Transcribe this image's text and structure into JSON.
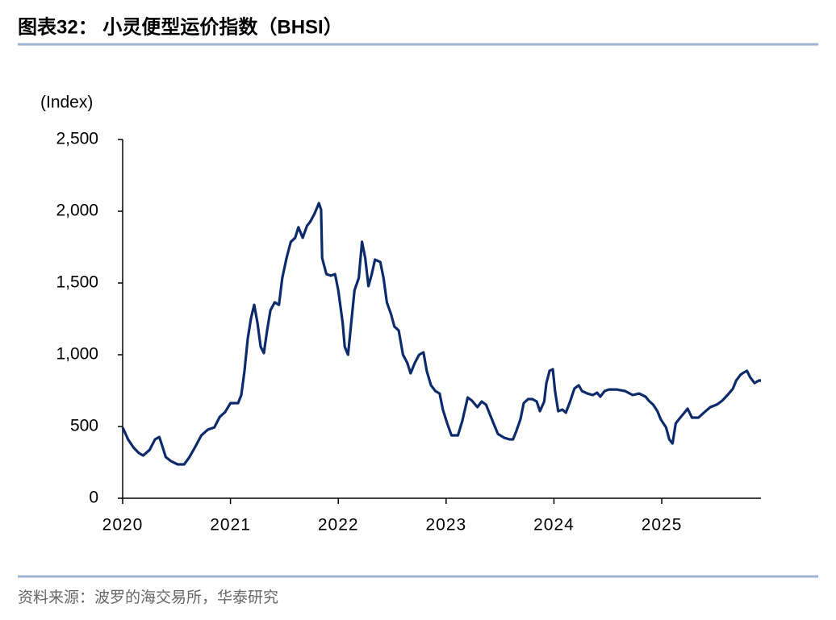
{
  "chart_data": {
    "type": "line",
    "title": "图表32：  小灵便型运价指数（BHSI）",
    "y_label": "(Index)",
    "source": "资料来源：波罗的海交易所，华泰研究",
    "xlim": [
      2020,
      2025.92
    ],
    "xticks": [
      2020,
      2021,
      2022,
      2023,
      2024,
      2025
    ],
    "ylim": [
      0,
      2500
    ],
    "yticks": [
      0,
      500,
      {
        "value": 1000,
        "label": "1,000"
      },
      {
        "value": 1500,
        "label": "1,500"
      },
      {
        "value": 2000,
        "label": "2,000"
      },
      {
        "value": 2500,
        "label": "2,500"
      }
    ],
    "grid": false,
    "x": [
      2020.0,
      2020.05,
      2020.1,
      2020.15,
      2020.19,
      2020.25,
      2020.3,
      2020.34,
      2020.36,
      2020.4,
      2020.45,
      2020.51,
      2020.57,
      2020.62,
      2020.67,
      2020.73,
      2020.79,
      2020.85,
      2020.9,
      2020.95,
      2021.0,
      2021.07,
      2021.1,
      2021.13,
      2021.16,
      2021.19,
      2021.22,
      2021.25,
      2021.28,
      2021.31,
      2021.34,
      2021.37,
      2021.41,
      2021.45,
      2021.48,
      2021.52,
      2021.56,
      2021.6,
      2021.63,
      2021.67,
      2021.71,
      2021.74,
      2021.78,
      2021.82,
      2021.84,
      2021.85,
      2021.89,
      2021.93,
      2021.97,
      2022.0,
      2022.04,
      2022.06,
      2022.09,
      2022.12,
      2022.15,
      2022.19,
      2022.22,
      2022.25,
      2022.28,
      2022.31,
      2022.34,
      2022.39,
      2022.42,
      2022.45,
      2022.49,
      2022.52,
      2022.56,
      2022.6,
      2022.64,
      2022.67,
      2022.71,
      2022.75,
      2022.79,
      2022.82,
      2022.86,
      2022.9,
      2022.94,
      2022.97,
      2023.01,
      2023.05,
      2023.11,
      2023.15,
      2023.2,
      2023.24,
      2023.29,
      2023.33,
      2023.37,
      2023.4,
      2023.44,
      2023.48,
      2023.54,
      2023.59,
      2023.62,
      2023.65,
      2023.69,
      2023.72,
      2023.76,
      2023.8,
      2023.84,
      2023.87,
      2023.91,
      2023.93,
      2023.96,
      2023.99,
      2024.01,
      2024.04,
      2024.08,
      2024.11,
      2024.15,
      2024.19,
      2024.23,
      2024.26,
      2024.31,
      2024.36,
      2024.4,
      2024.43,
      2024.47,
      2024.51,
      2024.58,
      2024.66,
      2024.73,
      2024.79,
      2024.85,
      2024.88,
      2024.92,
      2024.96,
      2024.99,
      2025.04,
      2025.07,
      2025.1,
      2025.13,
      2025.16,
      2025.21,
      2025.24,
      2025.28,
      2025.34,
      2025.39,
      2025.45,
      2025.51,
      2025.56,
      2025.61,
      2025.66,
      2025.69,
      2025.73,
      2025.76,
      2025.79,
      2025.82,
      2025.86,
      2025.9,
      2025.92
    ],
    "series": [
      {
        "color": "#0d2b6b",
        "values": [
          494,
          410,
          354,
          315,
          298,
          337,
          410,
          427,
          382,
          287,
          258,
          236,
          236,
          287,
          354,
          438,
          478,
          494,
          567,
          600,
          663,
          663,
          719,
          888,
          1112,
          1253,
          1348,
          1225,
          1056,
          1011,
          1169,
          1309,
          1365,
          1348,
          1534,
          1674,
          1787,
          1815,
          1888,
          1815,
          1899,
          1927,
          1983,
          2056,
          2011,
          1674,
          1562,
          1551,
          1562,
          1449,
          1225,
          1056,
          1000,
          1225,
          1449,
          1534,
          1787,
          1674,
          1478,
          1562,
          1663,
          1646,
          1534,
          1365,
          1281,
          1197,
          1169,
          1000,
          944,
          871,
          944,
          1000,
          1017,
          888,
          787,
          747,
          730,
          618,
          522,
          438,
          438,
          539,
          702,
          680,
          635,
          674,
          652,
          596,
          522,
          449,
          421,
          410,
          410,
          466,
          551,
          663,
          691,
          691,
          674,
          607,
          674,
          803,
          888,
          899,
          747,
          607,
          618,
          596,
          674,
          764,
          787,
          747,
          730,
          719,
          736,
          708,
          747,
          758,
          758,
          747,
          719,
          730,
          708,
          680,
          652,
          607,
          551,
          494,
          410,
          382,
          522,
          551,
          596,
          624,
          562,
          562,
          596,
          635,
          652,
          680,
          719,
          764,
          820,
          860,
          876,
          888,
          843,
          803,
          820,
          820
        ]
      }
    ]
  }
}
